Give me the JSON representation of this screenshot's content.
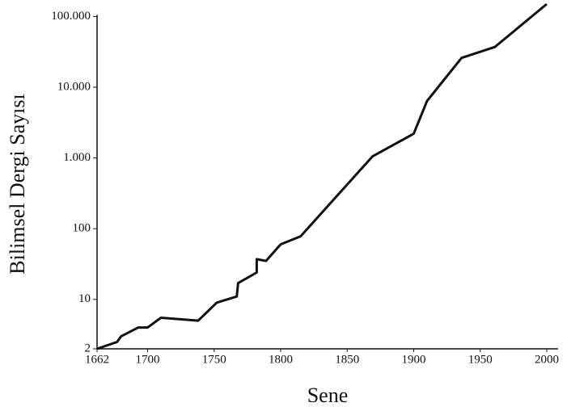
{
  "chart_data": {
    "type": "line",
    "x_label": "Sene",
    "y_label": "Bilimsel Dergi Sayısı",
    "x": [
      1662,
      1677,
      1680,
      1693,
      1700,
      1710,
      1738,
      1752,
      1767,
      1768,
      1782,
      1782,
      1789,
      1800,
      1815,
      1869,
      1900,
      1910,
      1936,
      1961,
      2000
    ],
    "values": [
      2,
      2.5,
      3,
      4,
      4,
      5.5,
      5,
      9,
      11,
      17,
      24,
      37,
      35,
      60,
      78,
      1050,
      2200,
      6400,
      26000,
      37000,
      150000
    ],
    "color": "#111111",
    "xlim": [
      1662,
      2000
    ],
    "xticks": [
      1662,
      1700,
      1750,
      1800,
      1850,
      1900,
      1950,
      2000
    ],
    "ylim": [
      2,
      150000
    ],
    "log_y": true,
    "yticks": [
      2,
      10,
      100,
      {
        "value": 1000,
        "label": "1.000"
      },
      {
        "value": 10000,
        "label": "10.000"
      },
      {
        "value": 100000,
        "label": "100.000"
      }
    ],
    "grid": false
  }
}
